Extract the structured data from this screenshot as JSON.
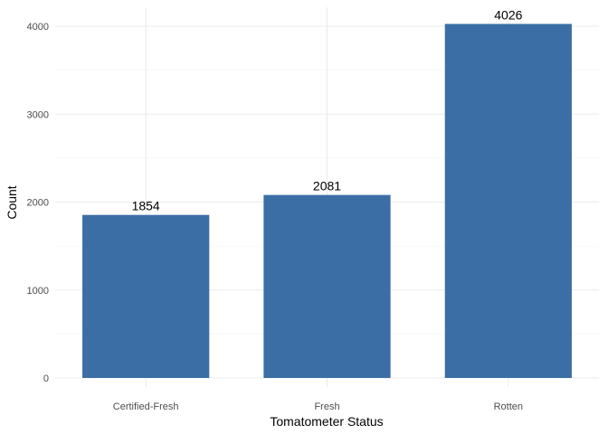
{
  "chart_data": {
    "type": "bar",
    "categories": [
      "Certified-Fresh",
      "Fresh",
      "Rotten"
    ],
    "values": [
      1854,
      2081,
      4026
    ],
    "data_labels": [
      "1854",
      "2081",
      "4026"
    ],
    "title": "",
    "xlabel": "Tomatometer Status",
    "ylabel": "Count",
    "ylim": [
      0,
      4200
    ],
    "y_ticks": [
      0,
      1000,
      2000,
      3000,
      4000
    ],
    "y_tick_labels": [
      "0",
      "1000",
      "2000",
      "3000",
      "4000"
    ],
    "grid": true,
    "legend": "none",
    "bar_color": "#3a6ea5"
  }
}
